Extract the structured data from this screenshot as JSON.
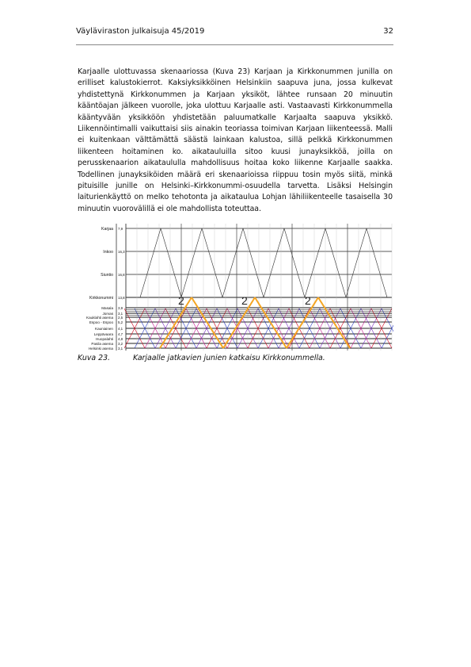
{
  "header": {
    "left": "Väyläviraston julkaisuja 45/2019",
    "page_number": "32"
  },
  "paragraph": "Karjaalle ulottuvassa skenaariossa (Kuva 23) Karjaan ja Kirkkonummen junilla on erilliset kalustokierrot. Kaksiyksikköinen Helsinkiin saapuva juna, jossa kulkevat yhdistettynä Kirkkonummen ja Karjaan yksiköt, lähtee runsaan 20 minuutin kääntöajan jälkeen vuorolle, joka ulottuu Karjaalle asti. Vastaavasti Kirkkonummella kääntyvään yksikköön yhdistetään paluumatkalle Karjaalta saapuva yksikkö. Liikennöintimalli vaikuttaisi siis ainakin teoriassa toimivan Karjaan liikenteessä. Malli ei kuitenkaan välttämättä säästä lainkaan kalustoa, sillä pelkkä Kirkkonummen liikenteen hoitaminen ko. aikatauluilla sitoo kuusi junayksikköä, joilla on perusskenaarion aikataululla mahdollisuus hoitaa koko liikenne Karjaalle saakka. Todellinen junayksiköiden määrä eri skenaarioissa riippuu tosin myös siitä, minkä pituisille junille on Helsinki–Kirkkonummi-osuudella tarvetta. Lisäksi Helsingin laiturienkäyttö on melko tehotonta ja aikataulua Lohjan lähiliikenteelle tasaisella 30 minuutin vuorovälillä ei ole mahdollista toteuttaa.",
  "figure": {
    "stations": [
      {
        "name": "Karjaa",
        "km": "7,9"
      },
      {
        "name": "Inkoo",
        "km": "16,3"
      },
      {
        "name": "Siuntio",
        "km": "16,8"
      },
      {
        "name": "Kirkkonummi",
        "km": "13,8"
      },
      {
        "name": "Masala",
        "km": "3,9"
      },
      {
        "name": "Jorvas",
        "km": "3,1"
      },
      {
        "name": "Kauklahti",
        "km": "2,5"
      },
      {
        "name": "Espoo",
        "km": "5,2"
      },
      {
        "name": "Kauniainen",
        "km": "4,1"
      },
      {
        "name": "Leppävaara",
        "km": "4,7"
      },
      {
        "name": "Huopalahti",
        "km": "4,8"
      },
      {
        "name": "Pasila",
        "km": "3,2"
      },
      {
        "name": "Helsinki asema",
        "km": "3,1"
      }
    ],
    "station_labels": [
      "Karjaa",
      "Inkoo",
      "Siuntio",
      "Kirkkonummi",
      "Masala",
      "Jorvas",
      "Kauklahti asema",
      "Espoo - Espoo",
      "Kauniainen",
      "Leppävaara",
      "Huopalahti",
      "Pasila asema",
      "Helsinki asema"
    ],
    "annotations": [
      "2",
      "2",
      "2"
    ],
    "colors": {
      "karjaa": "#333333",
      "orange": "#f5a623",
      "red": "#d0021b",
      "blue": "#2b3cc2",
      "magenta": "#c2188f",
      "purple": "#7b2cbf"
    }
  },
  "caption": {
    "number": "Kuva 23.",
    "text": "Karjaalle jatkavien junien katkaisu Kirkkonummella."
  }
}
